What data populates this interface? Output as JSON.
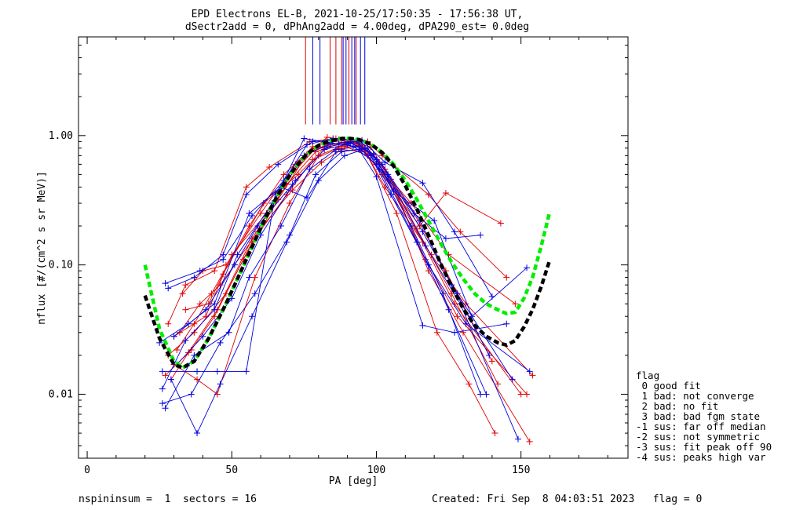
{
  "title": {
    "line1": "EPD Electrons EL-B, 2021-10-25/17:50:35 - 17:56:38 UT,",
    "line2": "dSectr2add = 0, dPhAng2add = 4.00deg, dPA290_est=    0.0deg"
  },
  "footer": {
    "left": "nspininsum =  1  sectors = 16",
    "right": "Created: Fri Sep  8 04:03:51 2023   flag = 0"
  },
  "legend": {
    "title": "flag",
    "entries": [
      " 0 good fit",
      " 1 bad: not converge",
      " 2 bad: no fit",
      " 3 bad: bad fgm state",
      "-1 sus: far off median",
      "-2 sus: not symmetric",
      "-3 sus: fit peak off 90",
      "-4 sus: peaks high var"
    ]
  },
  "colors": {
    "red": "#e00000",
    "blue": "#0000e0",
    "green": "#00ee00",
    "black": "#000000"
  },
  "chart_data": {
    "type": "line",
    "xlabel": "PA [deg]",
    "ylabel": "nflux [#/(cm^2 s sr MeV)]",
    "xlim": [
      -3,
      187
    ],
    "ylim": [
      0.0032,
      5.8
    ],
    "ylog": true,
    "x_ticks": [
      0,
      50,
      100,
      150
    ],
    "x_tick_labels": [
      "0",
      "50",
      "100",
      "150"
    ],
    "y_ticks": [
      0.01,
      0.1,
      1.0
    ],
    "y_tick_labels": [
      "0.01",
      "0.10",
      "1.00"
    ],
    "fit_curves": [
      {
        "color": "green",
        "x": [
          20,
          25,
          30,
          33,
          37,
          42,
          48,
          55,
          62,
          68,
          72,
          76,
          80,
          84,
          88,
          91,
          94,
          98,
          102,
          106,
          110,
          114,
          118,
          122,
          126,
          130,
          134,
          138,
          142,
          145,
          148,
          151,
          154,
          157,
          160
        ],
        "y": [
          0.1,
          0.032,
          0.018,
          0.016,
          0.018,
          0.027,
          0.05,
          0.11,
          0.24,
          0.42,
          0.57,
          0.72,
          0.84,
          0.91,
          0.95,
          0.95,
          0.93,
          0.86,
          0.74,
          0.6,
          0.45,
          0.32,
          0.22,
          0.15,
          0.105,
          0.078,
          0.06,
          0.05,
          0.045,
          0.042,
          0.043,
          0.055,
          0.08,
          0.14,
          0.26
        ]
      },
      {
        "color": "black",
        "x": [
          20,
          25,
          30,
          33,
          37,
          42,
          48,
          55,
          62,
          68,
          72,
          76,
          80,
          84,
          88,
          91,
          94,
          98,
          102,
          106,
          110,
          114,
          118,
          122,
          126,
          130,
          134,
          138,
          142,
          145,
          148,
          151,
          154,
          157,
          160
        ],
        "y": [
          0.058,
          0.027,
          0.017,
          0.016,
          0.018,
          0.027,
          0.05,
          0.11,
          0.24,
          0.42,
          0.57,
          0.72,
          0.84,
          0.91,
          0.95,
          0.95,
          0.93,
          0.86,
          0.74,
          0.58,
          0.41,
          0.27,
          0.17,
          0.105,
          0.068,
          0.046,
          0.034,
          0.028,
          0.025,
          0.024,
          0.026,
          0.033,
          0.045,
          0.068,
          0.11
        ]
      }
    ],
    "spin_series": [
      {
        "color": "red",
        "x": [
          29,
          35,
          45,
          57,
          69,
          79,
          88,
          95,
          101,
          113,
          124,
          140
        ],
        "y": [
          0.013,
          0.021,
          0.045,
          0.16,
          0.42,
          0.75,
          0.88,
          0.85,
          0.62,
          0.25,
          0.09,
          0.018
        ]
      },
      {
        "color": "red",
        "x": [
          31,
          37,
          43,
          56,
          68,
          78,
          87,
          96,
          103,
          114,
          126,
          142
        ],
        "y": [
          0.022,
          0.035,
          0.06,
          0.2,
          0.5,
          0.82,
          0.93,
          0.8,
          0.55,
          0.19,
          0.06,
          0.012
        ]
      },
      {
        "color": "red",
        "x": [
          28,
          34,
          44,
          55,
          63,
          77,
          86,
          97,
          102,
          118,
          129,
          145
        ],
        "y": [
          0.035,
          0.07,
          0.09,
          0.4,
          0.57,
          0.9,
          0.95,
          0.9,
          0.7,
          0.35,
          0.18,
          0.08
        ]
      },
      {
        "color": "red",
        "x": [
          30,
          38,
          45,
          58,
          70,
          80,
          89,
          95,
          102,
          115,
          124,
          143
        ],
        "y": [
          0.017,
          0.013,
          0.01,
          0.08,
          0.3,
          0.7,
          0.85,
          0.8,
          0.5,
          0.2,
          0.36,
          0.21
        ]
      },
      {
        "color": "red",
        "x": [
          32,
          39,
          46,
          59,
          71,
          81,
          88,
          96,
          104,
          116,
          127,
          150
        ],
        "y": [
          0.03,
          0.05,
          0.07,
          0.18,
          0.38,
          0.62,
          0.78,
          0.75,
          0.45,
          0.15,
          0.05,
          0.01
        ]
      },
      {
        "color": "red",
        "x": [
          33,
          40,
          48,
          60,
          65,
          79,
          90,
          98,
          105,
          118,
          130,
          153
        ],
        "y": [
          0.06,
          0.09,
          0.1,
          0.25,
          0.36,
          0.8,
          0.9,
          0.82,
          0.46,
          0.09,
          0.03,
          0.0043
        ]
      },
      {
        "color": "red",
        "x": [
          27,
          36,
          44,
          54,
          66,
          76,
          85,
          94,
          100,
          112,
          125,
          148
        ],
        "y": [
          0.014,
          0.022,
          0.04,
          0.11,
          0.32,
          0.72,
          0.9,
          0.87,
          0.62,
          0.3,
          0.12,
          0.05
        ]
      },
      {
        "color": "red",
        "x": [
          30,
          41,
          50,
          62,
          72,
          83,
          91,
          99,
          106,
          117,
          128,
          152
        ],
        "y": [
          0.028,
          0.04,
          0.12,
          0.25,
          0.6,
          0.97,
          0.92,
          0.72,
          0.38,
          0.11,
          0.04,
          0.01
        ]
      },
      {
        "color": "red",
        "x": [
          34,
          42,
          47,
          61,
          73,
          82,
          89,
          97,
          103,
          119,
          131,
          154
        ],
        "y": [
          0.045,
          0.05,
          0.085,
          0.3,
          0.5,
          0.8,
          0.83,
          0.7,
          0.4,
          0.12,
          0.05,
          0.014
        ]
      },
      {
        "color": "red",
        "x": [
          28,
          37,
          48,
          57,
          69,
          78,
          87,
          95,
          107,
          121,
          132,
          141
        ],
        "y": [
          0.02,
          0.03,
          0.06,
          0.15,
          0.35,
          0.65,
          0.8,
          0.85,
          0.25,
          0.03,
          0.012,
          0.005
        ]
      },
      {
        "color": "blue",
        "x": [
          26,
          34,
          44,
          52,
          64,
          75,
          84,
          93,
          100,
          112,
          123,
          136
        ],
        "y": [
          0.011,
          0.026,
          0.045,
          0.12,
          0.3,
          0.7,
          0.86,
          0.9,
          0.65,
          0.2,
          0.06,
          0.01
        ]
      },
      {
        "color": "blue",
        "x": [
          27,
          37,
          49,
          56,
          67,
          77,
          86,
          94,
          101,
          114,
          125,
          138
        ],
        "y": [
          0.0078,
          0.02,
          0.03,
          0.08,
          0.2,
          0.55,
          0.78,
          0.82,
          0.55,
          0.15,
          0.045,
          0.01
        ]
      },
      {
        "color": "blue",
        "x": [
          26,
          38,
          45,
          55,
          65,
          76,
          85,
          95,
          103,
          116,
          127,
          140
        ],
        "y": [
          0.015,
          0.015,
          0.015,
          0.015,
          0.35,
          0.85,
          0.95,
          0.92,
          0.62,
          0.43,
          0.18,
          0.057
        ]
      },
      {
        "color": "blue",
        "x": [
          27,
          39,
          47,
          57,
          68,
          75,
          84,
          92,
          100,
          113,
          124,
          136
        ],
        "y": [
          0.072,
          0.09,
          0.11,
          0.24,
          0.45,
          0.95,
          0.88,
          0.83,
          0.6,
          0.25,
          0.16,
          0.17
        ]
      },
      {
        "color": "blue",
        "x": [
          28,
          37,
          47,
          55,
          66,
          78,
          87,
          95,
          102,
          115,
          126,
          139
        ],
        "y": [
          0.066,
          0.08,
          0.12,
          0.35,
          0.6,
          0.9,
          0.92,
          0.88,
          0.6,
          0.22,
          0.07,
          0.02
        ]
      },
      {
        "color": "blue",
        "x": [
          29,
          38,
          46,
          57,
          69,
          80,
          89,
          97,
          104,
          116,
          128,
          147
        ],
        "y": [
          0.013,
          0.005,
          0.012,
          0.04,
          0.15,
          0.45,
          0.7,
          0.8,
          0.5,
          0.18,
          0.06,
          0.013
        ]
      },
      {
        "color": "blue",
        "x": [
          26,
          36,
          46,
          58,
          70,
          79,
          88,
          96,
          104,
          117,
          129,
          149
        ],
        "y": [
          0.0085,
          0.01,
          0.025,
          0.06,
          0.17,
          0.5,
          0.75,
          0.8,
          0.48,
          0.14,
          0.05,
          0.0045
        ]
      },
      {
        "color": "blue",
        "x": [
          30,
          41,
          51,
          59,
          71,
          82,
          90,
          98,
          105,
          118,
          131,
          153
        ],
        "y": [
          0.028,
          0.045,
          0.1,
          0.2,
          0.42,
          0.78,
          0.86,
          0.7,
          0.35,
          0.1,
          0.035,
          0.015
        ]
      },
      {
        "color": "blue",
        "x": [
          31,
          40,
          50,
          60,
          72,
          83,
          91,
          99,
          106,
          120,
          133,
          152
        ],
        "y": [
          0.017,
          0.028,
          0.055,
          0.17,
          0.45,
          0.82,
          0.88,
          0.72,
          0.37,
          0.22,
          0.04,
          0.095
        ]
      },
      {
        "color": "blue",
        "x": [
          25,
          35,
          44,
          56,
          67,
          76,
          86,
          94,
          100,
          116,
          127,
          145
        ],
        "y": [
          0.025,
          0.035,
          0.05,
          0.25,
          0.4,
          0.33,
          0.75,
          0.78,
          0.48,
          0.034,
          0.03,
          0.035
        ]
      }
    ],
    "reference_ticks": {
      "red_x": [
        75.5,
        84,
        86,
        88,
        90.5,
        93
      ],
      "blue_x": [
        78,
        80.5,
        88.5,
        89.5,
        91.5,
        92.5,
        94.5,
        96
      ],
      "y_top": 5.8,
      "y_bottom": 1.22
    }
  }
}
